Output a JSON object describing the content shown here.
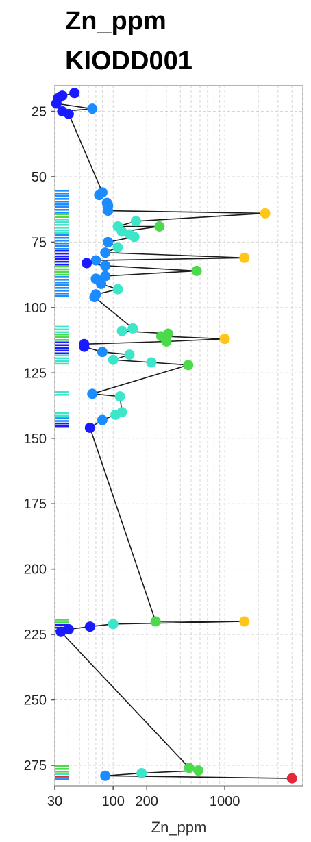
{
  "title_line1": "Zn_ppm",
  "title_line2": "KIODD001",
  "chart_data": {
    "type": "scatter",
    "title": "Zn_ppm KIODD001",
    "xlabel": "Zn_ppm",
    "ylabel": "",
    "x_scale": "log",
    "xlim": [
      30,
      5000
    ],
    "ylim": [
      16,
      283
    ],
    "y_inverted": true,
    "x_ticks": [
      30,
      100,
      200,
      1000
    ],
    "x_tick_labels": [
      "30",
      "100",
      "200",
      "1000"
    ],
    "y_ticks": [
      25,
      50,
      75,
      100,
      125,
      150,
      175,
      200,
      225,
      250,
      275
    ],
    "y_tick_labels": [
      "25",
      "50",
      "75",
      "100",
      "125",
      "150",
      "175",
      "200",
      "225",
      "250",
      "275"
    ],
    "grid": true,
    "colors": {
      "very_low": "#1a1aff",
      "low": "#1a8cff",
      "mid": "#3de6c8",
      "midhigh": "#4cd94c",
      "high": "#ffc61a",
      "very_high": "#e6283c",
      "line": "#1a1a1a"
    },
    "points": [
      {
        "depth": 18,
        "zn": 45,
        "cls": "very_low"
      },
      {
        "depth": 19,
        "zn": 35,
        "cls": "very_low"
      },
      {
        "depth": 20,
        "zn": 32,
        "cls": "very_low"
      },
      {
        "depth": 22,
        "zn": 31,
        "cls": "very_low"
      },
      {
        "depth": 24,
        "zn": 65,
        "cls": "low"
      },
      {
        "depth": 25,
        "zn": 35,
        "cls": "very_low"
      },
      {
        "depth": 26,
        "zn": 40,
        "cls": "very_low"
      },
      {
        "depth": 56,
        "zn": 80,
        "cls": "low"
      },
      {
        "depth": 57,
        "zn": 75,
        "cls": "low"
      },
      {
        "depth": 60,
        "zn": 88,
        "cls": "low"
      },
      {
        "depth": 61,
        "zn": 90,
        "cls": "low"
      },
      {
        "depth": 63,
        "zn": 90,
        "cls": "low"
      },
      {
        "depth": 64,
        "zn": 2300,
        "cls": "high"
      },
      {
        "depth": 67,
        "zn": 160,
        "cls": "mid"
      },
      {
        "depth": 69,
        "zn": 110,
        "cls": "mid"
      },
      {
        "depth": 69,
        "zn": 260,
        "cls": "midhigh"
      },
      {
        "depth": 71,
        "zn": 120,
        "cls": "mid"
      },
      {
        "depth": 72,
        "zn": 140,
        "cls": "mid"
      },
      {
        "depth": 73,
        "zn": 155,
        "cls": "mid"
      },
      {
        "depth": 75,
        "zn": 90,
        "cls": "low"
      },
      {
        "depth": 77,
        "zn": 110,
        "cls": "mid"
      },
      {
        "depth": 79,
        "zn": 85,
        "cls": "low"
      },
      {
        "depth": 81,
        "zn": 1500,
        "cls": "high"
      },
      {
        "depth": 82,
        "zn": 70,
        "cls": "low"
      },
      {
        "depth": 83,
        "zn": 58,
        "cls": "very_low"
      },
      {
        "depth": 84,
        "zn": 85,
        "cls": "low"
      },
      {
        "depth": 86,
        "zn": 560,
        "cls": "midhigh"
      },
      {
        "depth": 88,
        "zn": 85,
        "cls": "low"
      },
      {
        "depth": 89,
        "zn": 70,
        "cls": "low"
      },
      {
        "depth": 91,
        "zn": 78,
        "cls": "low"
      },
      {
        "depth": 93,
        "zn": 110,
        "cls": "mid"
      },
      {
        "depth": 95,
        "zn": 70,
        "cls": "low"
      },
      {
        "depth": 96,
        "zn": 68,
        "cls": "low"
      },
      {
        "depth": 108,
        "zn": 150,
        "cls": "mid"
      },
      {
        "depth": 109,
        "zn": 120,
        "cls": "mid"
      },
      {
        "depth": 110,
        "zn": 310,
        "cls": "midhigh"
      },
      {
        "depth": 111,
        "zn": 270,
        "cls": "midhigh"
      },
      {
        "depth": 112,
        "zn": 1000,
        "cls": "high"
      },
      {
        "depth": 113,
        "zn": 300,
        "cls": "midhigh"
      },
      {
        "depth": 114,
        "zn": 55,
        "cls": "very_low"
      },
      {
        "depth": 115,
        "zn": 55,
        "cls": "very_low"
      },
      {
        "depth": 117,
        "zn": 80,
        "cls": "low"
      },
      {
        "depth": 118,
        "zn": 140,
        "cls": "mid"
      },
      {
        "depth": 120,
        "zn": 100,
        "cls": "mid"
      },
      {
        "depth": 121,
        "zn": 220,
        "cls": "mid"
      },
      {
        "depth": 122,
        "zn": 470,
        "cls": "midhigh"
      },
      {
        "depth": 133,
        "zn": 65,
        "cls": "low"
      },
      {
        "depth": 134,
        "zn": 115,
        "cls": "mid"
      },
      {
        "depth": 140,
        "zn": 120,
        "cls": "mid"
      },
      {
        "depth": 141,
        "zn": 105,
        "cls": "mid"
      },
      {
        "depth": 143,
        "zn": 80,
        "cls": "low"
      },
      {
        "depth": 146,
        "zn": 62,
        "cls": "very_low"
      },
      {
        "depth": 220,
        "zn": 240,
        "cls": "midhigh"
      },
      {
        "depth": 220,
        "zn": 1500,
        "cls": "high"
      },
      {
        "depth": 221,
        "zn": 100,
        "cls": "mid"
      },
      {
        "depth": 222,
        "zn": 62,
        "cls": "very_low"
      },
      {
        "depth": 223,
        "zn": 40,
        "cls": "very_low"
      },
      {
        "depth": 224,
        "zn": 34,
        "cls": "very_low"
      },
      {
        "depth": 276,
        "zn": 480,
        "cls": "midhigh"
      },
      {
        "depth": 277,
        "zn": 580,
        "cls": "midhigh"
      },
      {
        "depth": 278,
        "zn": 180,
        "cls": "mid"
      },
      {
        "depth": 279,
        "zn": 85,
        "cls": "low"
      },
      {
        "depth": 280,
        "zn": 4000,
        "cls": "very_high"
      }
    ],
    "strip": [
      {
        "from": 55,
        "to": 64,
        "cls": "low"
      },
      {
        "from": 64,
        "to": 66,
        "cls": "midhigh"
      },
      {
        "from": 66,
        "to": 72,
        "cls": "mid"
      },
      {
        "from": 72,
        "to": 78,
        "cls": "low"
      },
      {
        "from": 78,
        "to": 84,
        "cls": "very_low"
      },
      {
        "from": 84,
        "to": 88,
        "cls": "midhigh"
      },
      {
        "from": 88,
        "to": 96,
        "cls": "low"
      },
      {
        "from": 107,
        "to": 110,
        "cls": "mid"
      },
      {
        "from": 110,
        "to": 113,
        "cls": "midhigh"
      },
      {
        "from": 113,
        "to": 118,
        "cls": "very_low"
      },
      {
        "from": 118,
        "to": 122,
        "cls": "mid"
      },
      {
        "from": 132,
        "to": 134,
        "cls": "mid"
      },
      {
        "from": 140,
        "to": 142,
        "cls": "mid"
      },
      {
        "from": 142,
        "to": 144,
        "cls": "low"
      },
      {
        "from": 144,
        "to": 146,
        "cls": "very_low"
      },
      {
        "from": 219,
        "to": 221,
        "cls": "midhigh"
      },
      {
        "from": 221,
        "to": 224,
        "cls": "very_low"
      },
      {
        "from": 275,
        "to": 278,
        "cls": "midhigh"
      },
      {
        "from": 278,
        "to": 279,
        "cls": "mid"
      },
      {
        "from": 279,
        "to": 280,
        "cls": "very_high"
      },
      {
        "from": 280,
        "to": 281,
        "cls": "low"
      }
    ]
  }
}
